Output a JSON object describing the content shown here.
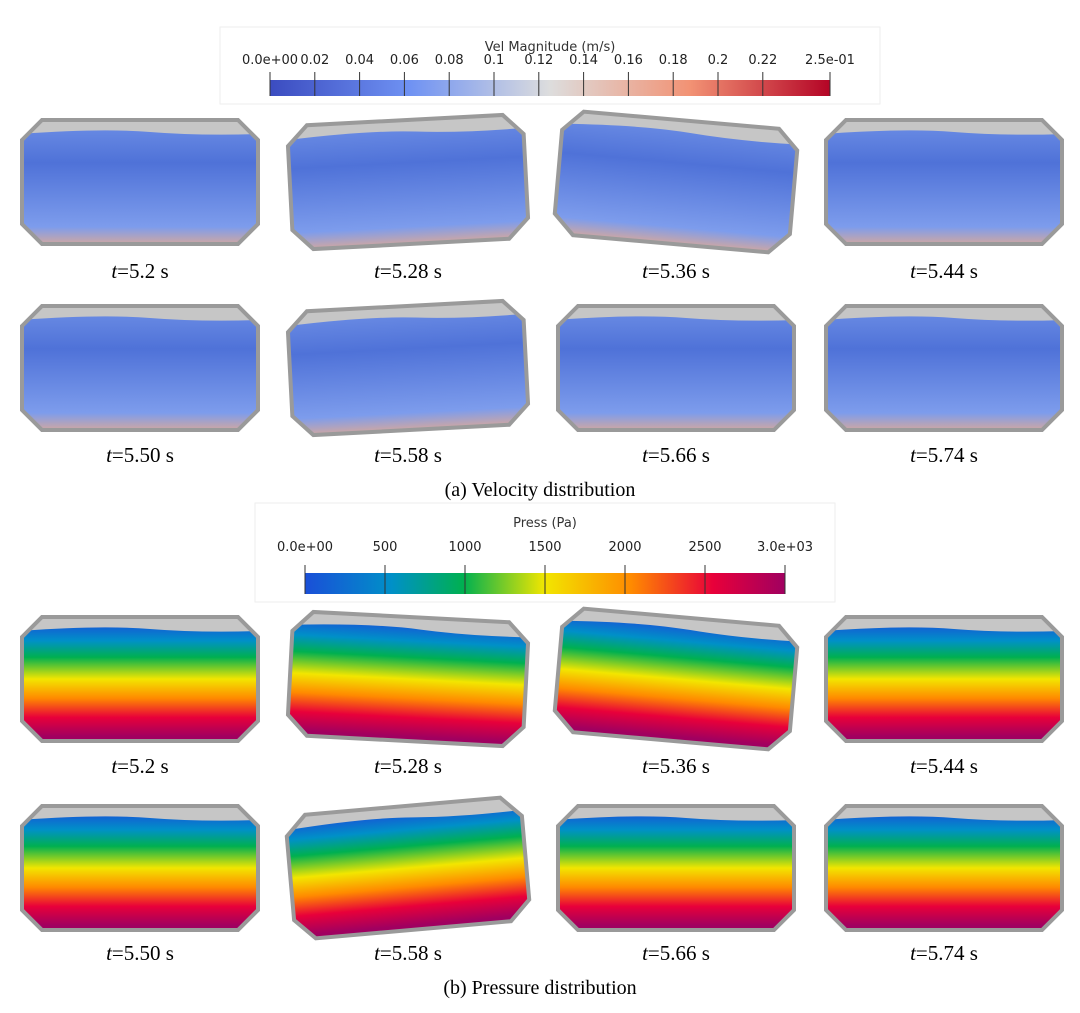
{
  "velocity_panel": {
    "colorbar": {
      "title": "Vel Magnitude (m/s)",
      "ticks": [
        {
          "value": 0,
          "label": "0.0e+00"
        },
        0.02,
        0.04,
        0.06,
        0.08,
        0.1,
        0.12,
        0.14,
        0.16,
        0.18,
        0.2,
        0.22,
        {
          "value": 0.25,
          "label": "2.5e-01"
        }
      ]
    },
    "frames": [
      {
        "var": "t",
        "time": "=5.2 s"
      },
      {
        "var": "t",
        "time": "=5.28 s"
      },
      {
        "var": "t",
        "time": "=5.36 s"
      },
      {
        "var": "t",
        "time": "=5.44 s"
      },
      {
        "var": "t",
        "time": "=5.50 s"
      },
      {
        "var": "t",
        "time": "=5.58 s"
      },
      {
        "var": "t",
        "time": "=5.66 s"
      },
      {
        "var": "t",
        "time": "=5.74 s"
      }
    ],
    "caption": "(a) Velocity distribution"
  },
  "pressure_panel": {
    "colorbar": {
      "title": "Press (Pa)",
      "ticks": [
        {
          "value": 0,
          "label": "0.0e+00"
        },
        500,
        1000,
        1500,
        2000,
        2500,
        {
          "value": 3000,
          "label": "3.0e+03"
        }
      ]
    },
    "frames": [
      {
        "var": "t",
        "time": "=5.2 s"
      },
      {
        "var": "t",
        "time": "=5.28 s"
      },
      {
        "var": "t",
        "time": "=5.36 s"
      },
      {
        "var": "t",
        "time": "=5.44 s"
      },
      {
        "var": "t",
        "time": "=5.50 s"
      },
      {
        "var": "t",
        "time": "=5.58 s"
      },
      {
        "var": "t",
        "time": "=5.66 s"
      },
      {
        "var": "t",
        "time": "=5.74 s"
      }
    ],
    "caption": "(b) Pressure distribution"
  }
}
